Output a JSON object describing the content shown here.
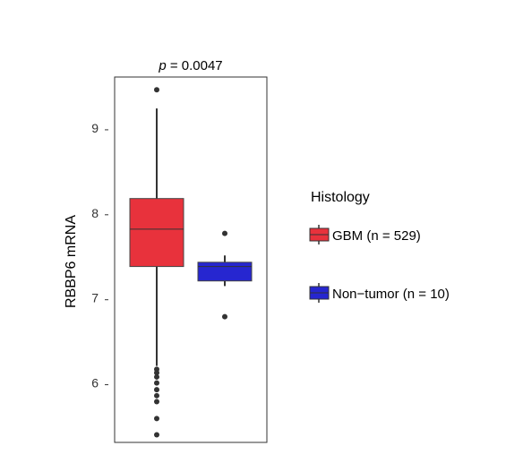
{
  "chart_data": {
    "type": "box",
    "title": "p = 0.0047",
    "title_parts": {
      "symbol": "p",
      "rest": " = 0.0047"
    },
    "ylabel": "RBBP6 mRNA",
    "xlabel": "",
    "ylim": [
      5.3,
      9.6
    ],
    "yticks": [
      6,
      7,
      8,
      9
    ],
    "grid": false,
    "legend": {
      "title": "Histology",
      "placement": "right",
      "entries": [
        "GBM (n = 529)",
        "Non−tumor (n = 10)"
      ]
    },
    "series": [
      {
        "name": "GBM (n = 529)",
        "color": "#e8323c",
        "q1": 7.37,
        "median": 7.81,
        "q3": 8.17,
        "whisker_low": 6.2,
        "whisker_high": 9.23,
        "outliers": [
          9.45,
          6.16,
          6.12,
          6.07,
          6.0,
          5.92,
          5.85,
          5.78,
          5.58,
          5.39
        ]
      },
      {
        "name": "Non−tumor (n = 10)",
        "color": "#2626d0",
        "q1": 7.2,
        "median": 7.37,
        "q3": 7.42,
        "whisker_low": 7.14,
        "whisker_high": 7.5,
        "outliers": [
          7.76,
          6.78
        ]
      }
    ]
  }
}
